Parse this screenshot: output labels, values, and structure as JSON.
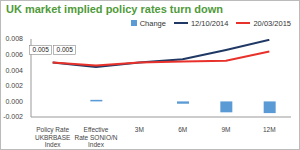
{
  "chart_data": {
    "type": "bar",
    "title": "UK market implied policy rates turn down",
    "categories": [
      "Policy Rate UKBRBASE Index",
      "Effective Rate SONIO/N Index",
      "3M",
      "6M",
      "9M",
      "12M"
    ],
    "series": [
      {
        "name": "Change",
        "type": "bar",
        "color": "#5b9bd5",
        "values": [
          0,
          0.0002,
          0,
          -0.0003,
          -0.0014,
          -0.0015
        ]
      },
      {
        "name": "12/10/2014",
        "type": "line",
        "color": "#1f3864",
        "values": [
          0.005,
          0.0044,
          0.005,
          0.0054,
          0.0066,
          0.0079
        ],
        "value_labels": [
          "0.005",
          null,
          null,
          null,
          null,
          null
        ]
      },
      {
        "name": "20/03/2015",
        "type": "line",
        "color": "#e8312a",
        "values": [
          0.005,
          0.0046,
          0.005,
          0.0051,
          0.0052,
          0.0064
        ],
        "value_labels": [
          "0.005",
          null,
          null,
          null,
          null,
          null
        ]
      }
    ],
    "ylim": [
      -0.002,
      0.008
    ],
    "yticks": [
      {
        "value": -0.002,
        "label": "-0.002"
      },
      {
        "value": 0,
        "label": "0.000"
      },
      {
        "value": 0.002,
        "label": "0.002"
      },
      {
        "value": 0.004,
        "label": "0.004"
      },
      {
        "value": 0.006,
        "label": "0.006"
      },
      {
        "value": 0.008,
        "label": "0.008"
      }
    ],
    "grid": false
  }
}
